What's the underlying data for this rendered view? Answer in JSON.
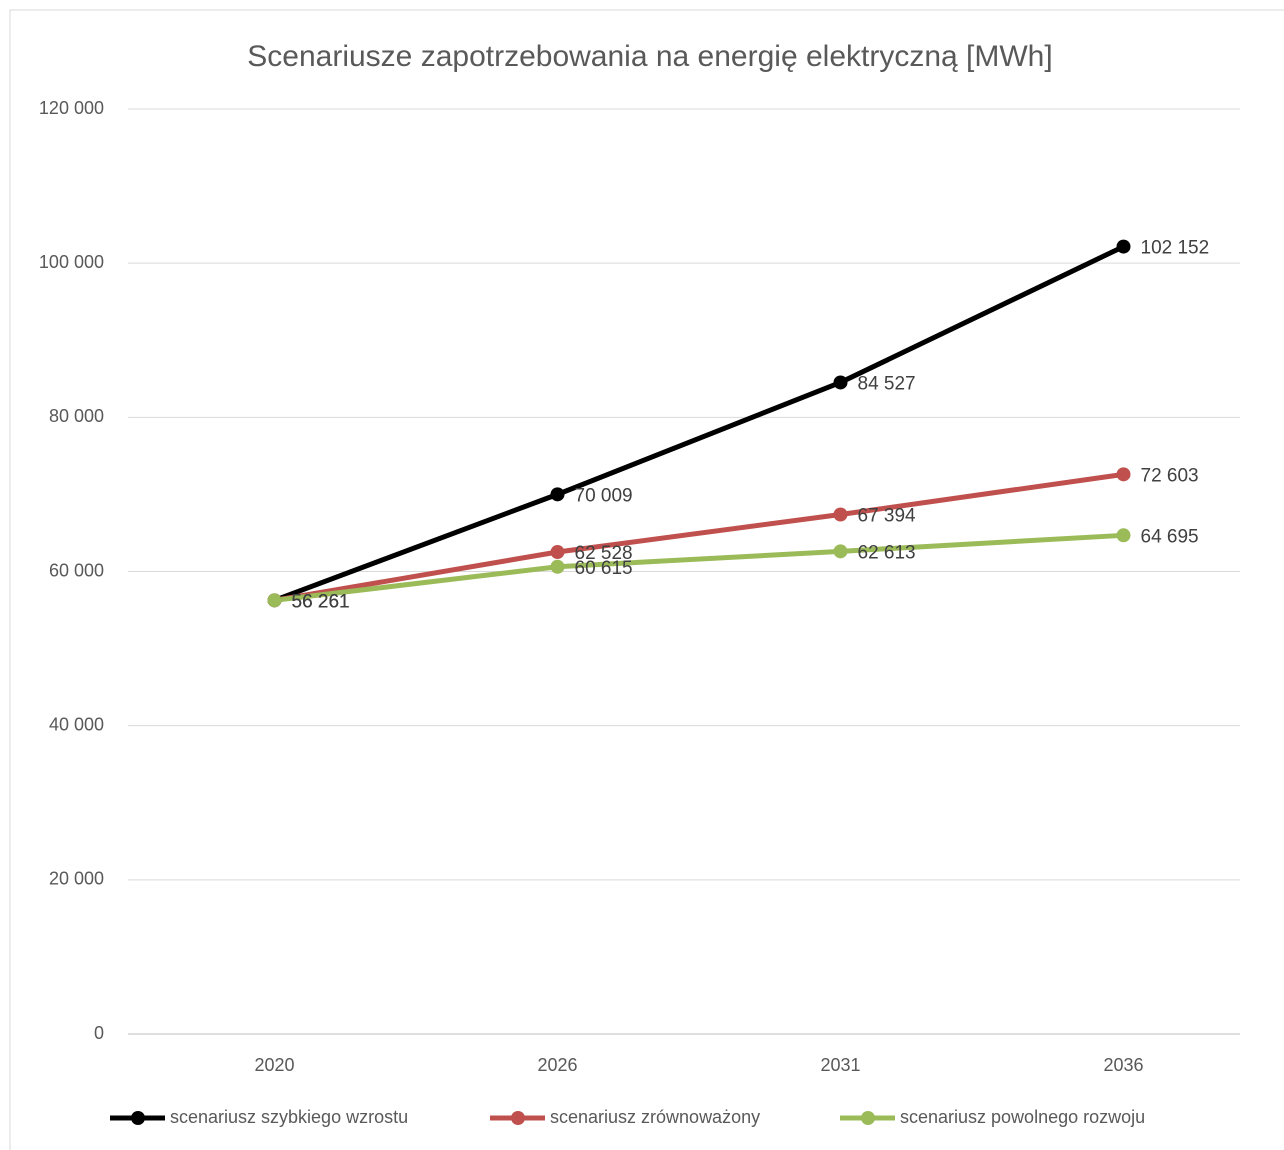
{
  "chart_data": {
    "type": "line",
    "title": "Scenariusze zapotrzebowania na energię elektryczną [MWh]",
    "categories": [
      "2020",
      "2026",
      "2031",
      "2036"
    ],
    "series": [
      {
        "name": "scenariusz szybkiego wzrostu",
        "color": "#000000",
        "values": [
          56261,
          70009,
          84527,
          102152
        ],
        "value_labels": [
          "56 261",
          "70 009",
          "84 527",
          "102 152"
        ]
      },
      {
        "name": "scenariusz zrównoważony",
        "color": "#c0504d",
        "values": [
          56261,
          62528,
          67394,
          72603
        ],
        "value_labels": [
          "56 261",
          "62 528",
          "67 394",
          "72 603"
        ]
      },
      {
        "name": "scenariusz powolnego rozwoju",
        "color": "#9bbb59",
        "values": [
          56261,
          60615,
          62613,
          64695
        ],
        "value_labels": [
          "56 261",
          "60 615",
          "62 613",
          "64 695"
        ]
      }
    ],
    "ylim": [
      0,
      120000
    ],
    "yticks": [
      0,
      {
        "value": 20000,
        "label": "20 000"
      },
      {
        "value": 40000,
        "label": "40 000"
      },
      {
        "value": 60000,
        "label": "60 000"
      },
      {
        "value": 80000,
        "label": "80 000"
      },
      {
        "value": 100000,
        "label": "100 000"
      },
      {
        "value": 120000,
        "label": "120 000"
      }
    ],
    "grid": true,
    "legend": "bottom"
  }
}
